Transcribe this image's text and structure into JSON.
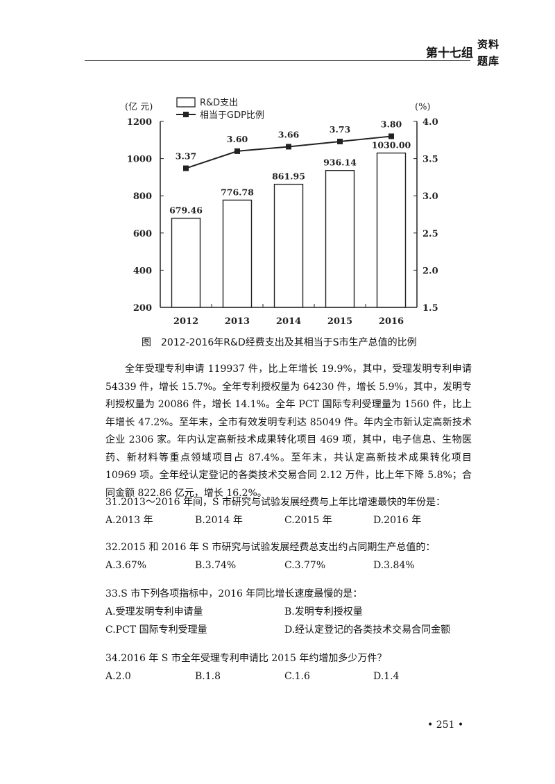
{
  "header": {
    "group_label": "第十七组",
    "stamp_line1": "资料",
    "stamp_line2": "题库"
  },
  "chart_data": {
    "type": "bar+line",
    "categories": [
      "2012",
      "2013",
      "2014",
      "2015",
      "2016"
    ],
    "series": [
      {
        "name": "R&D支出",
        "type": "bar",
        "axis": "left",
        "values": [
          679.46,
          776.78,
          861.95,
          936.14,
          1030.0
        ],
        "labels": [
          "679.46",
          "776.78",
          "861.95",
          "936.14",
          "1030.00"
        ]
      },
      {
        "name": "相当于GDP比例",
        "type": "line",
        "axis": "right",
        "values": [
          3.37,
          3.6,
          3.66,
          3.73,
          3.8
        ],
        "labels": [
          "3.37",
          "3.60",
          "3.66",
          "3.73",
          "3.80"
        ]
      }
    ],
    "left_axis": {
      "unit": "(亿 元)",
      "ylim": [
        200,
        1200
      ],
      "ticks": [
        "200",
        "400",
        "600",
        "800",
        "1000",
        "1200"
      ]
    },
    "right_axis": {
      "unit": "(%)",
      "ylim": [
        1.5,
        4.0
      ],
      "ticks": [
        "1.5",
        "2.0",
        "2.5",
        "3.0",
        "3.5",
        "4.0"
      ]
    },
    "legend_position": "top-left",
    "grid": false,
    "colors": {
      "bar_fill": "#ffffff",
      "bar_stroke": "#222222",
      "line": "#222222"
    },
    "caption": "图　2012-2016年R&D经费支出及其相当于S市生产总值的比例"
  },
  "passage": "全年受理专利申请 119937 件，比上年增长 19.9%，其中，受理发明专利申请 54339 件，增长 15.7%。全年专利授权量为 64230 件，增长 5.9%，其中，发明专利授权量为 20086 件，增长 14.1%。全年 PCT 国际专利受理量为 1560 件，比上年增长 47.2%。至年末，全市有效发明专利达 85049 件。年内全市新认定高新技术企业 2306 家。年内认定高新技术成果转化项目 469 项，其中，电子信息、生物医药、新材料等重点领域项目占 87.4%。至年末，共认定高新技术成果转化项目 10969 项。全年经认定登记的各类技术交易合同 2.12 万件，比上年下降 5.8%；合同金额 822.86 亿元，增长 16.2%。",
  "questions": [
    {
      "stem": "31.2013～2016 年间，S 市研究与试验发展经费与上年比增速最快的年份是：",
      "options": [
        "A.2013 年",
        "B.2014 年",
        "C.2015 年",
        "D.2016 年"
      ]
    },
    {
      "stem": "32.2015 和 2016 年 S 市研究与试验发展经费总支出约占同期生产总值的：",
      "options": [
        "A.3.67%",
        "B.3.74%",
        "C.3.77%",
        "D.3.84%"
      ]
    },
    {
      "stem": "33.S 市下列各项指标中，2016 年同比增长速度最慢的是：",
      "options": [
        "A.受理发明专利申请量",
        "B.发明专利授权量",
        "C.PCT 国际专利受理量",
        "D.经认定登记的各类技术交易合同金额"
      ]
    },
    {
      "stem": "34.2016 年 S 市全年受理专利申请比 2015 年约增加多少万件？",
      "options": [
        "A.2.0",
        "B.1.8",
        "C.1.6",
        "D.1.4"
      ]
    }
  ],
  "page_number": "• 251 •"
}
